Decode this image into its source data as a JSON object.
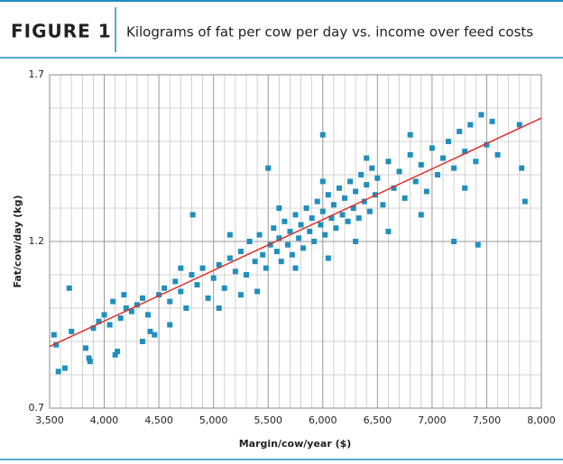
{
  "chart_data": {
    "type": "scatter",
    "figure_label": "FIGURE 1",
    "title": "Kilograms of fat per cow per day vs. income over feed costs",
    "xlabel": "Margin/cow/year ($)",
    "ylabel": "Fat/cow/day (kg)",
    "xlim": [
      3500,
      8000
    ],
    "ylim": [
      0.7,
      1.7
    ],
    "xticks": [
      {
        "value": 3500,
        "label": "3,500"
      },
      {
        "value": 4000,
        "label": "4,000"
      },
      {
        "value": 4500,
        "label": "4,500"
      },
      {
        "value": 5000,
        "label": "5,000"
      },
      {
        "value": 5500,
        "label": "5,500"
      },
      {
        "value": 6000,
        "label": "6,000"
      },
      {
        "value": 6500,
        "label": "6,500"
      },
      {
        "value": 7000,
        "label": "7,000"
      },
      {
        "value": 7500,
        "label": "7,500"
      },
      {
        "value": 8000,
        "label": "8,000"
      }
    ],
    "yticks": [
      0.7,
      1.2,
      1.7
    ],
    "grid": true,
    "color": "#1f8fbf",
    "x": [
      3540,
      3560,
      3580,
      3640,
      3680,
      3830,
      3860,
      3870,
      4100,
      4120,
      4810,
      5500,
      7820,
      7850,
      7200,
      7420,
      5400,
      6000,
      3900,
      3950,
      4000,
      4050,
      4080,
      4150,
      4200,
      4250,
      4300,
      4350,
      4400,
      4420,
      4460,
      4500,
      4550,
      4600,
      4650,
      4700,
      4750,
      4800,
      4850,
      4900,
      4950,
      5000,
      5050,
      5100,
      5150,
      5200,
      5250,
      5300,
      5330,
      5380,
      5420,
      5450,
      5480,
      5520,
      5550,
      5580,
      5600,
      5620,
      5650,
      5680,
      5700,
      5720,
      5750,
      5780,
      5800,
      5820,
      5850,
      5880,
      5900,
      5920,
      5950,
      5980,
      6000,
      6020,
      6050,
      6080,
      6100,
      6120,
      6150,
      6180,
      6200,
      6230,
      6250,
      6280,
      6300,
      6330,
      6350,
      6380,
      6400,
      6430,
      6450,
      6480,
      6500,
      6550,
      6600,
      6650,
      6700,
      6750,
      6800,
      6850,
      6900,
      6950,
      7000,
      7050,
      7100,
      7150,
      7200,
      7250,
      7300,
      7350,
      7400,
      7450,
      7500,
      7550,
      7600,
      7800,
      3700,
      4180,
      4600,
      5050,
      5250,
      5750,
      6050,
      6300,
      6600,
      6900,
      4350,
      4700,
      5150,
      5600,
      6000,
      6400,
      6800,
      7300
    ],
    "y": [
      0.92,
      0.89,
      0.81,
      0.82,
      1.06,
      0.88,
      0.85,
      0.84,
      0.86,
      0.87,
      1.28,
      1.42,
      1.42,
      1.32,
      1.2,
      1.19,
      1.05,
      1.52,
      0.94,
      0.96,
      0.98,
      0.95,
      1.02,
      0.97,
      1.0,
      0.99,
      1.01,
      1.03,
      0.98,
      0.93,
      0.92,
      1.04,
      1.06,
      1.02,
      1.08,
      1.05,
      1.0,
      1.1,
      1.07,
      1.12,
      1.03,
      1.09,
      1.13,
      1.06,
      1.15,
      1.11,
      1.17,
      1.1,
      1.2,
      1.14,
      1.22,
      1.16,
      1.12,
      1.19,
      1.24,
      1.17,
      1.21,
      1.14,
      1.26,
      1.19,
      1.23,
      1.16,
      1.28,
      1.21,
      1.25,
      1.18,
      1.3,
      1.23,
      1.27,
      1.2,
      1.32,
      1.25,
      1.29,
      1.22,
      1.34,
      1.27,
      1.31,
      1.24,
      1.36,
      1.28,
      1.33,
      1.26,
      1.38,
      1.3,
      1.35,
      1.27,
      1.4,
      1.32,
      1.37,
      1.29,
      1.42,
      1.34,
      1.39,
      1.31,
      1.44,
      1.36,
      1.41,
      1.33,
      1.46,
      1.38,
      1.43,
      1.35,
      1.48,
      1.4,
      1.45,
      1.5,
      1.42,
      1.53,
      1.47,
      1.55,
      1.44,
      1.58,
      1.49,
      1.56,
      1.46,
      1.55,
      0.93,
      1.04,
      0.95,
      1.0,
      1.04,
      1.12,
      1.15,
      1.2,
      1.23,
      1.28,
      0.9,
      1.12,
      1.22,
      1.3,
      1.38,
      1.45,
      1.52,
      1.36
    ],
    "trendline": {
      "x": [
        3500,
        8000
      ],
      "y": [
        0.885,
        1.57
      ],
      "color": "#e0302a"
    }
  }
}
